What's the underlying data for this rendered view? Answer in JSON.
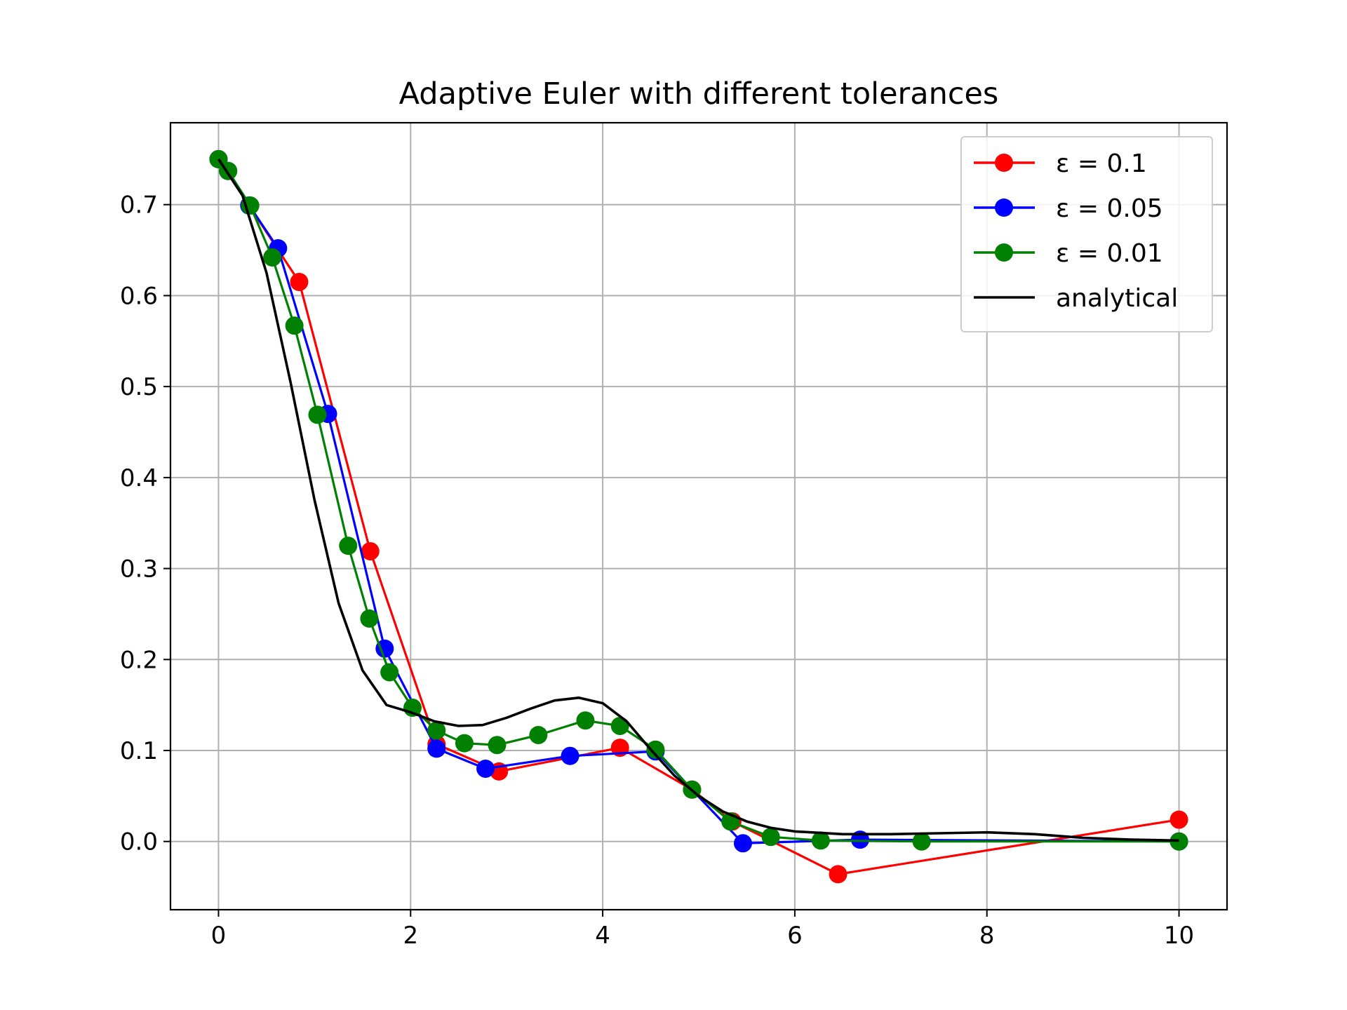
{
  "chart_data": {
    "type": "line",
    "title": "Adaptive Euler with different tolerances",
    "xlabel": "",
    "ylabel": "",
    "xlim": [
      -0.5,
      10.5
    ],
    "ylim": [
      -0.075,
      0.79
    ],
    "xticks": [
      0,
      2,
      4,
      6,
      8,
      10
    ],
    "xtick_labels": [
      "0",
      "2",
      "4",
      "6",
      "8",
      "10"
    ],
    "yticks": [
      0.0,
      0.1,
      0.2,
      0.3,
      0.4,
      0.5,
      0.6,
      0.7
    ],
    "ytick_labels": [
      "0.0",
      "0.1",
      "0.2",
      "0.3",
      "0.4",
      "0.5",
      "0.6",
      "0.7"
    ],
    "grid": true,
    "legend_position": "top-right",
    "series": [
      {
        "name": "ε = 0.1",
        "color": "#ff0000",
        "marker": "circle",
        "x": [
          0.0,
          0.84,
          1.58,
          2.27,
          2.92,
          4.18,
          4.93,
          5.35,
          6.45,
          10.0
        ],
        "y": [
          0.75,
          0.615,
          0.319,
          0.107,
          0.077,
          0.103,
          0.057,
          0.022,
          -0.036,
          0.024
        ]
      },
      {
        "name": "ε = 0.05",
        "color": "#0000ff",
        "marker": "circle",
        "x": [
          0.0,
          0.1,
          0.32,
          0.62,
          1.14,
          1.73,
          2.27,
          2.78,
          3.66,
          4.55,
          5.46,
          6.68,
          10.0
        ],
        "y": [
          0.75,
          0.737,
          0.699,
          0.652,
          0.47,
          0.212,
          0.102,
          0.08,
          0.094,
          0.099,
          -0.002,
          0.002,
          0.0
        ]
      },
      {
        "name": "ε = 0.01",
        "color": "#008000",
        "marker": "circle",
        "x": [
          0.0,
          0.1,
          0.33,
          0.56,
          0.79,
          1.03,
          1.35,
          1.57,
          1.78,
          2.02,
          2.27,
          2.56,
          2.9,
          3.33,
          3.82,
          4.18,
          4.55,
          4.93,
          5.33,
          5.75,
          6.27,
          7.32,
          10.0
        ],
        "y": [
          0.75,
          0.737,
          0.699,
          0.642,
          0.567,
          0.469,
          0.325,
          0.245,
          0.186,
          0.147,
          0.122,
          0.108,
          0.106,
          0.117,
          0.133,
          0.127,
          0.101,
          0.057,
          0.022,
          0.005,
          0.001,
          0.0,
          0.0
        ]
      },
      {
        "name": "analytical",
        "color": "#000000",
        "marker": "none",
        "x": [
          0.0,
          0.25,
          0.5,
          0.75,
          1.0,
          1.25,
          1.5,
          1.75,
          2.0,
          2.25,
          2.5,
          2.75,
          3.0,
          3.25,
          3.5,
          3.75,
          4.0,
          4.25,
          4.5,
          4.75,
          5.0,
          5.25,
          5.5,
          5.75,
          6.0,
          6.5,
          7.0,
          7.5,
          8.0,
          8.5,
          9.0,
          9.5,
          10.0
        ],
        "y": [
          0.75,
          0.71,
          0.625,
          0.505,
          0.375,
          0.262,
          0.188,
          0.15,
          0.142,
          0.132,
          0.127,
          0.128,
          0.136,
          0.146,
          0.155,
          0.158,
          0.152,
          0.132,
          0.101,
          0.072,
          0.05,
          0.033,
          0.022,
          0.015,
          0.011,
          0.008,
          0.008,
          0.009,
          0.01,
          0.008,
          0.004,
          0.002,
          0.001
        ]
      }
    ]
  }
}
